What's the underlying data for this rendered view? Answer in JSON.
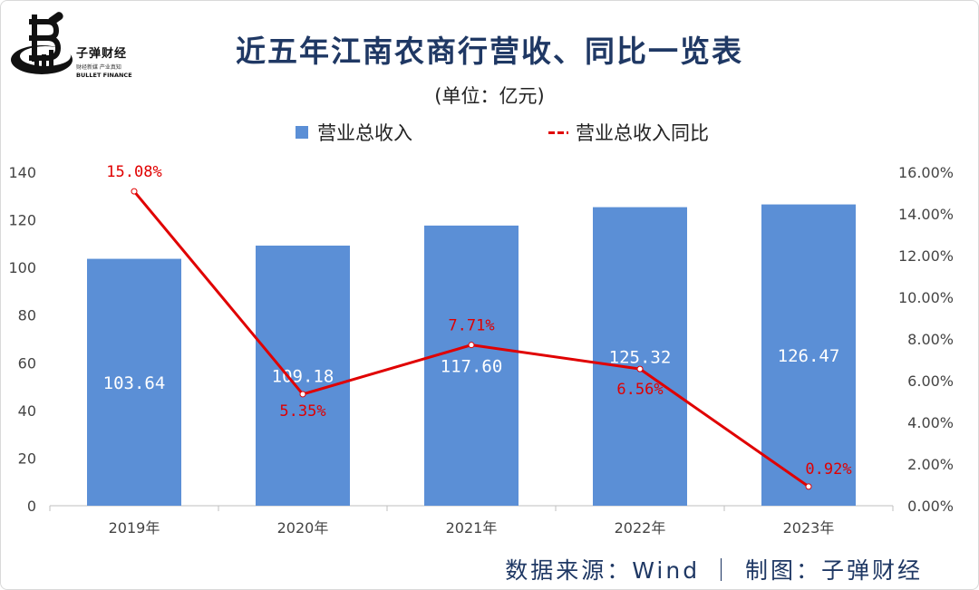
{
  "title": "近五年江南农商行营收、同比一览表",
  "unit": "(单位：亿元)",
  "logo": {
    "name": "子弹财经",
    "subtitle": "财经新媒 产业真知",
    "english": "BULLET FINANCE"
  },
  "footer": "数据来源：Wind ｜ 制图：子弹财经",
  "colors": {
    "bar": "#5b8fd6",
    "line": "#e00000",
    "title": "#1f3864"
  },
  "chart_data": {
    "type": "bar",
    "categories": [
      "2019年",
      "2020年",
      "2021年",
      "2022年",
      "2023年"
    ],
    "series": [
      {
        "name": "营业总收入",
        "type": "bar",
        "axis": "left",
        "values": [
          103.64,
          109.18,
          117.6,
          125.32,
          126.47
        ],
        "labels": [
          "103.64",
          "109.18",
          "117.60",
          "125.32",
          "126.47"
        ]
      },
      {
        "name": "营业总收入同比",
        "type": "line",
        "axis": "right",
        "values": [
          15.08,
          5.35,
          7.71,
          6.56,
          0.92
        ],
        "labels": [
          "15.08%",
          "5.35%",
          "7.71%",
          "6.56%",
          "0.92%"
        ]
      }
    ],
    "y_left": {
      "min": 0,
      "max": 140,
      "ticks": [
        "0",
        "20",
        "40",
        "60",
        "80",
        "100",
        "120",
        "140"
      ]
    },
    "y_right": {
      "min": 0,
      "max": 16,
      "ticks": [
        "0.00%",
        "2.00%",
        "4.00%",
        "6.00%",
        "8.00%",
        "10.00%",
        "12.00%",
        "14.00%",
        "16.00%"
      ]
    },
    "legend": "top",
    "grid": false
  }
}
